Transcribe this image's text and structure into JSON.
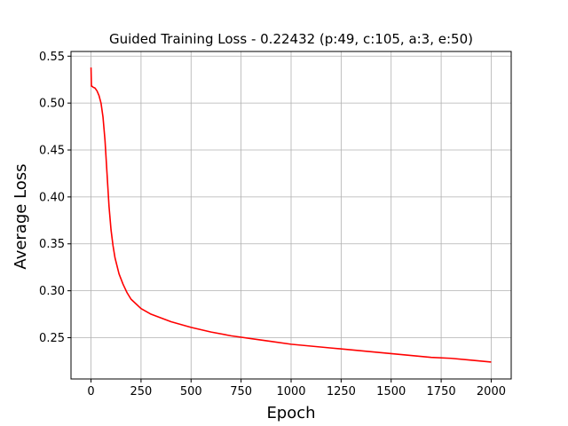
{
  "chart_data": {
    "type": "line",
    "title": "Guided Training Loss - 0.22432 (p:49, c:105, a:3, e:50)",
    "xlabel": "Epoch",
    "ylabel": "Average Loss",
    "xlim": [
      -100,
      2100
    ],
    "ylim": [
      0.206,
      0.555
    ],
    "xticks": [
      0,
      250,
      500,
      750,
      1000,
      1250,
      1500,
      1750,
      2000
    ],
    "yticks": [
      0.25,
      0.3,
      0.35,
      0.4,
      0.45,
      0.5,
      0.55
    ],
    "xtick_labels": [
      "0",
      "250",
      "500",
      "750",
      "1000",
      "1250",
      "1500",
      "1750",
      "2000"
    ],
    "ytick_labels": [
      "0.25",
      "0.30",
      "0.35",
      "0.40",
      "0.45",
      "0.50",
      "0.55"
    ],
    "grid": true,
    "series": [
      {
        "color": "#ff0000",
        "x": [
          0,
          2,
          5,
          10,
          20,
          30,
          40,
          50,
          60,
          70,
          80,
          90,
          100,
          110,
          120,
          140,
          160,
          180,
          200,
          250,
          300,
          400,
          500,
          600,
          700,
          800,
          900,
          1000,
          1100,
          1200,
          1300,
          1400,
          1500,
          1600,
          1700,
          1800,
          1900,
          2000
        ],
        "y": [
          0.538,
          0.518,
          0.518,
          0.517,
          0.516,
          0.513,
          0.508,
          0.5,
          0.485,
          0.46,
          0.425,
          0.39,
          0.365,
          0.348,
          0.335,
          0.318,
          0.307,
          0.298,
          0.291,
          0.281,
          0.275,
          0.267,
          0.261,
          0.256,
          0.252,
          0.249,
          0.246,
          0.243,
          0.241,
          0.239,
          0.237,
          0.235,
          0.233,
          0.231,
          0.229,
          0.228,
          0.226,
          0.224
        ]
      }
    ]
  }
}
